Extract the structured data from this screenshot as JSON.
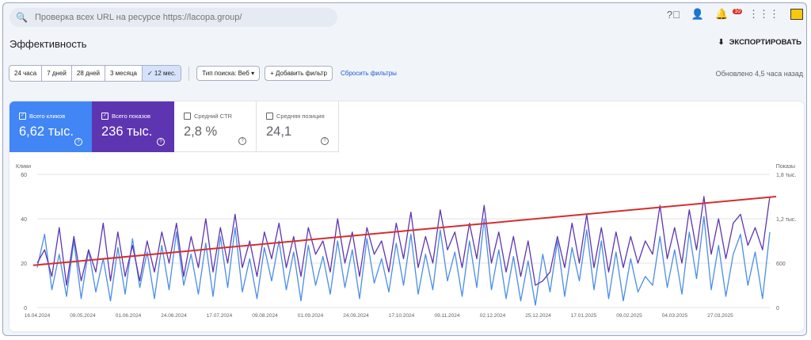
{
  "search": {
    "placeholder": "Проверка всех URL на ресурсе https://lacopa.group/"
  },
  "header": {
    "notification_count": "10",
    "title": "Эффективность",
    "export_label": "ЭКСПОРТИРОВАТЬ"
  },
  "filters": {
    "ranges": [
      "24 часа",
      "7 дней",
      "28 дней",
      "3 месяца",
      "12 мес."
    ],
    "selected_range": "12 мес.",
    "search_type": "Тип поиска: Веб",
    "add_filter": "Добавить фильтр",
    "reset": "Сбросить фильтры",
    "updated": "Обновлено 4,5 часа назад"
  },
  "metrics": [
    {
      "label": "Всего кликов",
      "value": "6,62 тыс.",
      "checked": true,
      "color": "#4285f4"
    },
    {
      "label": "Всего показов",
      "value": "236 тыс.",
      "checked": true,
      "color": "#5e35b1"
    },
    {
      "label": "Средний CTR",
      "value": "2,8 %",
      "checked": false
    },
    {
      "label": "Средняя позиция",
      "value": "24,1",
      "checked": false
    }
  ],
  "chart_data": {
    "type": "line",
    "ylabel_left": "Клики",
    "ylabel_right": "Показы",
    "left_ticks": [
      "60",
      "40",
      "20",
      "0"
    ],
    "right_ticks": [
      "1,8 тыс.",
      "1,2 тыс.",
      "600",
      "0"
    ],
    "ylim_left": [
      0,
      60
    ],
    "ylim_right": [
      0,
      1800
    ],
    "x_ticks": [
      "16.04.2024",
      "09.05.2024",
      "01.06.2024",
      "24.06.2024",
      "17.07.2024",
      "09.08.2024",
      "01.09.2024",
      "24.09.2024",
      "17.10.2024",
      "09.11.2024",
      "02.12.2024",
      "25.12.2024",
      "17.01.2025",
      "09.02.2025",
      "04.03.2025",
      "27.03.2025"
    ],
    "series": [
      {
        "name": "Всего кликов",
        "color": "#4a8ee6",
        "axis": "left",
        "values": [
          18,
          33,
          8,
          24,
          5,
          30,
          4,
          26,
          7,
          22,
          3,
          27,
          6,
          31,
          9,
          25,
          4,
          28,
          8,
          34,
          10,
          24,
          6,
          29,
          5,
          32,
          9,
          36,
          7,
          22,
          4,
          27,
          12,
          30,
          8,
          25,
          3,
          28,
          10,
          23,
          6,
          30,
          9,
          26,
          4,
          31,
          11,
          22,
          7,
          29,
          10,
          33,
          6,
          24,
          8,
          35,
          12,
          25,
          5,
          30,
          9,
          40,
          8,
          26,
          4,
          23,
          3,
          21,
          1,
          24,
          7,
          30,
          5,
          27,
          12,
          35,
          8,
          30,
          4,
          25,
          3,
          22,
          7,
          14,
          10,
          32,
          9,
          26,
          6,
          34,
          13,
          41,
          8,
          28,
          5,
          24,
          33,
          10,
          25,
          4,
          34
        ]
      },
      {
        "name": "Всего показов",
        "color": "#5e35b1",
        "axis": "right",
        "values": [
          600,
          780,
          420,
          1080,
          300,
          960,
          360,
          780,
          480,
          1140,
          360,
          1020,
          420,
          840,
          360,
          900,
          480,
          1020,
          600,
          1140,
          420,
          960,
          540,
          1200,
          480,
          1080,
          600,
          1260,
          540,
          900,
          420,
          1020,
          660,
          1140,
          540,
          960,
          420,
          1080,
          720,
          900,
          480,
          1200,
          600,
          1020,
          420,
          1080,
          720,
          900,
          480,
          1140,
          660,
          1290,
          540,
          960,
          600,
          1320,
          780,
          1020,
          540,
          1140,
          660,
          1380,
          600,
          1020,
          480,
          960,
          420,
          900,
          300,
          360,
          480,
          960,
          540,
          1140,
          600,
          1260,
          540,
          1080,
          480,
          1020,
          540,
          960,
          600,
          900,
          720,
          1380,
          660,
          1080,
          600,
          1320,
          780,
          1500,
          720,
          1200,
          660,
          1140,
          1260,
          840,
          1080,
          780,
          1500
        ]
      }
    ],
    "trendline": {
      "color": "#d32f2f",
      "from": 19,
      "to": 50
    }
  }
}
